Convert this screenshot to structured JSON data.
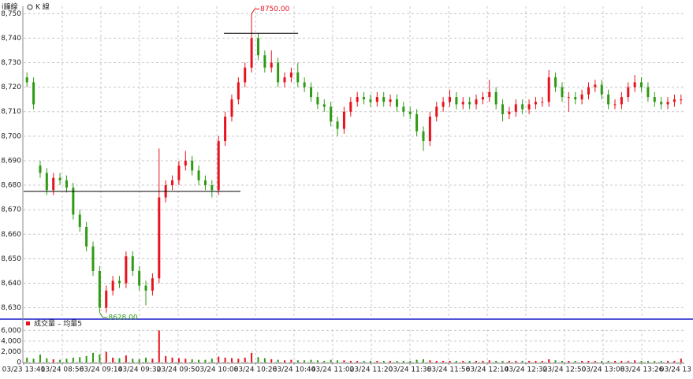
{
  "tabs": [
    "i鐘線",
    "K 線"
  ],
  "chart_data": {
    "type": "candlestick",
    "x_labels": [
      "03/23 13:41",
      "03/24 08:56",
      "03/24 09:14",
      "03/24 09:32",
      "03/24 09:50",
      "03/24 10:08",
      "03/24 10:26",
      "03/24 10:44",
      "03/24 11:02",
      "03/24 11:20",
      "03/24 11:38",
      "03/24 11:56",
      "03/24 12:14",
      "03/24 12:32",
      "03/24 12:50",
      "03/24 13:08",
      "03/24 13:26",
      "03/24 13"
    ],
    "up_color": "#e8121c",
    "down_color": "#2f9a14",
    "ylim": [
      8626,
      8753
    ],
    "yticks": [
      {
        "value": 8630,
        "label": "8,630"
      },
      {
        "value": 8640,
        "label": "8,640"
      },
      {
        "value": 8650,
        "label": "8,650"
      },
      {
        "value": 8660,
        "label": "8,660"
      },
      {
        "value": 8670,
        "label": "8,670"
      },
      {
        "value": 8680,
        "label": "8,680"
      },
      {
        "value": 8690,
        "label": "8,690"
      },
      {
        "value": 8700,
        "label": "8,700"
      },
      {
        "value": 8710,
        "label": "8,710"
      },
      {
        "value": 8720,
        "label": "8,720"
      },
      {
        "value": 8730,
        "label": "8,730"
      },
      {
        "value": 8740,
        "label": "8,740"
      },
      {
        "value": 8750,
        "label": "8,750"
      }
    ],
    "grid": true,
    "open": [
      8724,
      8722,
      8688,
      8685,
      8678,
      8683,
      8682,
      8679,
      8668,
      8663,
      8655,
      8645,
      8630,
      8637,
      8641,
      8640,
      8651,
      8645,
      8639,
      8637,
      8642,
      8675,
      8680,
      8682,
      8688,
      8690,
      8686,
      8682,
      8680,
      8678,
      8698,
      8708,
      8715,
      8722,
      8728,
      8740,
      8733,
      8728,
      8730,
      8722,
      8724,
      8726,
      8722,
      8720,
      8716,
      8713,
      8712,
      8706,
      8703,
      8710,
      8714,
      8716,
      8715,
      8714,
      8716,
      8714,
      8715,
      8712,
      8710,
      8709,
      8702,
      8698,
      8708,
      8712,
      8714,
      8716,
      8713,
      8714,
      8713,
      8715,
      8716,
      8718,
      8713,
      8709,
      8710,
      8713,
      8711,
      8713,
      8714,
      8714,
      8724,
      8720,
      8716,
      8716,
      8715,
      8717,
      8720,
      8721,
      8717,
      8713,
      8713,
      8716,
      8720,
      8722,
      8720,
      8716,
      8714,
      8713,
      8714,
      8715
    ],
    "high": [
      8726,
      8724,
      8690,
      8687,
      8685,
      8685,
      8684,
      8681,
      8670,
      8665,
      8657,
      8647,
      8639,
      8643,
      8643,
      8653,
      8653,
      8647,
      8641,
      8644,
      8695,
      8682,
      8684,
      8690,
      8694,
      8692,
      8688,
      8684,
      8682,
      8700,
      8710,
      8717,
      8724,
      8730,
      8750,
      8742,
      8735,
      8735,
      8732,
      8726,
      8728,
      8730,
      8724,
      8722,
      8718,
      8715,
      8714,
      8708,
      8712,
      8716,
      8718,
      8718,
      8717,
      8718,
      8718,
      8717,
      8717,
      8714,
      8712,
      8711,
      8704,
      8710,
      8714,
      8716,
      8719,
      8718,
      8716,
      8716,
      8717,
      8718,
      8723,
      8720,
      8715,
      8712,
      8715,
      8715,
      8715,
      8716,
      8716,
      8727,
      8726,
      8722,
      8718,
      8718,
      8719,
      8722,
      8723,
      8723,
      8719,
      8715,
      8718,
      8722,
      8725,
      8724,
      8722,
      8718,
      8716,
      8716,
      8717,
      8717
    ],
    "low": [
      8720,
      8711,
      8683,
      8676,
      8676,
      8680,
      8677,
      8666,
      8661,
      8653,
      8643,
      8628,
      8628,
      8635,
      8638,
      8638,
      8643,
      8637,
      8631,
      8635,
      8640,
      8673,
      8678,
      8680,
      8686,
      8684,
      8680,
      8678,
      8675,
      8676,
      8696,
      8706,
      8713,
      8720,
      8726,
      8731,
      8726,
      8726,
      8720,
      8720,
      8722,
      8720,
      8718,
      8714,
      8711,
      8710,
      8704,
      8700,
      8701,
      8708,
      8712,
      8713,
      8712,
      8712,
      8712,
      8712,
      8710,
      8708,
      8707,
      8700,
      8694,
      8696,
      8706,
      8710,
      8712,
      8711,
      8711,
      8711,
      8711,
      8713,
      8714,
      8711,
      8706,
      8707,
      8708,
      8709,
      8709,
      8711,
      8712,
      8712,
      8718,
      8714,
      8710,
      8713,
      8713,
      8715,
      8718,
      8715,
      8711,
      8711,
      8711,
      8714,
      8718,
      8718,
      8714,
      8712,
      8711,
      8711,
      8712,
      8713
    ],
    "close": [
      8722,
      8713,
      8685,
      8678,
      8683,
      8682,
      8679,
      8668,
      8663,
      8655,
      8645,
      8630,
      8637,
      8641,
      8640,
      8651,
      8645,
      8639,
      8637,
      8642,
      8675,
      8680,
      8682,
      8688,
      8690,
      8686,
      8682,
      8680,
      8678,
      8698,
      8708,
      8715,
      8722,
      8728,
      8740,
      8733,
      8728,
      8730,
      8722,
      8724,
      8726,
      8722,
      8720,
      8716,
      8713,
      8712,
      8706,
      8703,
      8710,
      8714,
      8716,
      8715,
      8714,
      8716,
      8714,
      8715,
      8712,
      8710,
      8709,
      8702,
      8698,
      8708,
      8712,
      8714,
      8716,
      8713,
      8714,
      8713,
      8715,
      8716,
      8718,
      8713,
      8709,
      8710,
      8713,
      8711,
      8713,
      8714,
      8714,
      8724,
      8720,
      8716,
      8716,
      8715,
      8717,
      8720,
      8721,
      8717,
      8713,
      8713,
      8716,
      8720,
      8722,
      8720,
      8716,
      8714,
      8713,
      8714,
      8715,
      8715
    ],
    "annotations": [
      {
        "value": 8750,
        "label": "8750.00",
        "color": "#e8121c"
      },
      {
        "value": 8628,
        "label": "8628.00",
        "color": "#2f9a14"
      }
    ],
    "levels": [
      8677.5,
      8742
    ],
    "volume_label": "成交量 – 均量5",
    "volume_color": "#e8121c",
    "volume": [
      900,
      700,
      1500,
      800,
      600,
      500,
      700,
      900,
      1000,
      1200,
      1800,
      1500,
      2000,
      900,
      800,
      1300,
      700,
      600,
      900,
      700,
      6000,
      1200,
      900,
      800,
      700,
      600,
      500,
      500,
      700,
      1100,
      900,
      800,
      700,
      900,
      1800,
      1000,
      800,
      600,
      500,
      400,
      500,
      400,
      400,
      500,
      400,
      300,
      500,
      400,
      400,
      300,
      300,
      300,
      300,
      300,
      300,
      300,
      300,
      300,
      300,
      500,
      600,
      400,
      300,
      300,
      300,
      300,
      300,
      300,
      300,
      300,
      400,
      300,
      300,
      300,
      300,
      300,
      300,
      300,
      300,
      600,
      400,
      300,
      300,
      300,
      300,
      300,
      300,
      300,
      300,
      300,
      300,
      300,
      400,
      300,
      300,
      300,
      300,
      300,
      300,
      700
    ],
    "y2lim": [
      0,
      6200
    ],
    "y2ticks": [
      0,
      {
        "value": 2000,
        "label": "2,000"
      },
      {
        "value": 4000,
        "label": "4,000"
      },
      {
        "value": 6000,
        "label": "6,000"
      }
    ]
  }
}
